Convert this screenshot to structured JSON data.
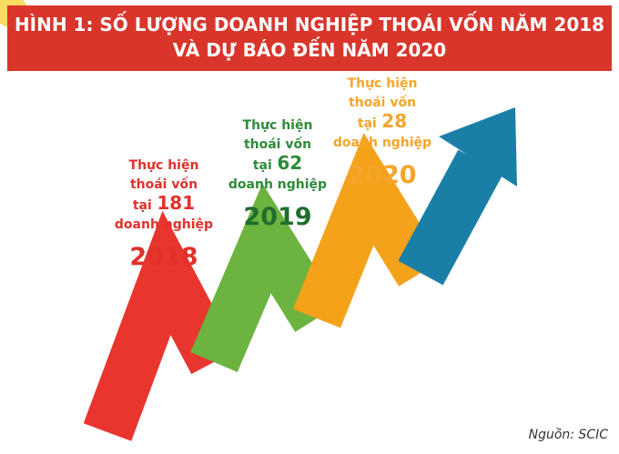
{
  "header": {
    "title_lines": [
      "HÌNH 1: SỐ LƯỢNG DOANH NGHIỆP THOÁI VỐN NĂM 2018",
      "VÀ DỰ BÁO ĐẾN NĂM 2020"
    ]
  },
  "items": [
    {
      "lines": [
        "Thực hiện",
        "thoái vốn"
      ],
      "prefix": "tại",
      "count": "181",
      "suffix": "doanh nghiệp",
      "year": "2018"
    },
    {
      "lines": [
        "Thực hiện",
        "thoái vốn"
      ],
      "prefix": "tại",
      "count": "62",
      "suffix": "doanh nghiệp",
      "year": "2019"
    },
    {
      "lines": [
        "Thực hiện",
        "thoái vốn"
      ],
      "prefix": "tại",
      "count": "28",
      "suffix": "doanh nghiệp",
      "year": "2020"
    }
  ],
  "source": "Nguồn: SCIC"
}
